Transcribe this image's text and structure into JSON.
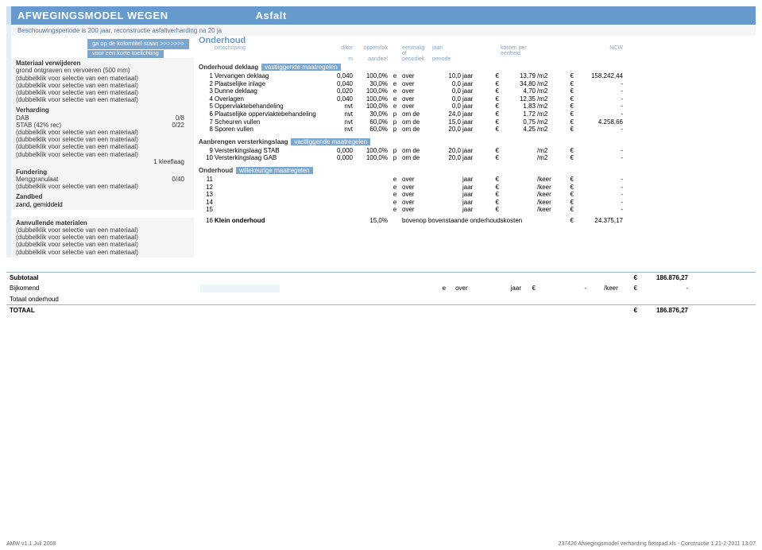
{
  "title": {
    "left": "AFWEGINGSMODEL WEGEN",
    "right": "Asfalt"
  },
  "subtitle": "Beschouwingsperiode is 200 jaar, reconstructie asfaltverharding na 20 ja",
  "hint": {
    "line1": "ga op de kolomtitel staan  >>>>>>>",
    "line2": "voor een korte toelichting"
  },
  "onderhoud": {
    "label": "Onderhoud",
    "cols": [
      "omschrijving",
      "dikte",
      "oppervlak",
      "eenmalig of",
      "jaar/",
      "kosten per eenheid",
      "NCW"
    ],
    "cols2": [
      "",
      "m",
      "aandeel",
      "periodiek",
      "periode",
      "",
      ""
    ]
  },
  "left": {
    "materiaal": {
      "head": "Materiaal verwijderen",
      "items": [
        "grond ontgraven en vervoeren (500 mm)",
        "(dubbelklik voor selectie van een materiaal)",
        "(dubbelklik voor selectie van een materiaal)",
        "(dubbelklik voor selectie van een materiaal)",
        "(dubbelklik voor selectie van een materiaal)"
      ]
    },
    "verharding": {
      "head": "Verharding",
      "items": [
        {
          "label": "DAB",
          "val": "0/8"
        },
        {
          "label": "STAB (42% rec)",
          "val": "0/22"
        },
        {
          "label": "(dubbelklik voor selectie van een materiaal)",
          "val": ""
        },
        {
          "label": "(dubbelklik voor selectie van een materiaal)",
          "val": ""
        },
        {
          "label": "(dubbelklik voor selectie van een materiaal)",
          "val": ""
        },
        {
          "label": "(dubbelklik voor selectie van een materiaal)",
          "val": ""
        },
        {
          "label": "",
          "val": "1 kleeflaag"
        }
      ]
    },
    "fundering": {
      "head": "Fundering",
      "items": [
        {
          "label": "Menggranulaat",
          "val": "0/40"
        },
        {
          "label": "(dubbelklik voor selectie van een materiaal)",
          "val": ""
        }
      ]
    },
    "zandbed": {
      "head": "Zandbed",
      "items": [
        "zand, gemiddeld"
      ]
    },
    "aanvullende": {
      "head": "Aanvullende materialen",
      "items": [
        "(dubbelklik voor selectie van een materiaal)",
        "(dubbelklik voor selectie van een materiaal)",
        "(dubbelklik voor selectie van een materiaal)",
        "(dubbelklik voor selectie van een materiaal)"
      ]
    }
  },
  "right": {
    "sec_deklaag": {
      "title": "Onderhoud deklaag",
      "suffix": "vastliggende maatregelen"
    },
    "rows_deklaag": [
      {
        "n": "1",
        "desc": "Vervangen deklaag",
        "d": "0,040",
        "opp": "100,0%",
        "e": "e",
        "ov": "over",
        "j": "10,0",
        "jl": "jaar",
        "eu": "€",
        "k": "13,79",
        "un": "/m2",
        "eu2": "€",
        "ncw": "158.242,44"
      },
      {
        "n": "2",
        "desc": "Plaatselijke inlage",
        "d": "0,040",
        "opp": "30,0%",
        "e": "e",
        "ov": "over",
        "j": "0,0",
        "jl": "jaar",
        "eu": "€",
        "k": "34,80",
        "un": "/m2",
        "eu2": "€",
        "ncw": "-"
      },
      {
        "n": "3",
        "desc": "Dunne deklaag",
        "d": "0,020",
        "opp": "100,0%",
        "e": "e",
        "ov": "over",
        "j": "0,0",
        "jl": "jaar",
        "eu": "€",
        "k": "4,70",
        "un": "/m2",
        "eu2": "€",
        "ncw": "-"
      },
      {
        "n": "4",
        "desc": "Overlagen",
        "d": "0,040",
        "opp": "100,0%",
        "e": "e",
        "ov": "over",
        "j": "0,0",
        "jl": "jaar",
        "eu": "€",
        "k": "12,35",
        "un": "/m2",
        "eu2": "€",
        "ncw": "-"
      },
      {
        "n": "5",
        "desc": "Oppervlaktebehandeling",
        "d": "nvt",
        "opp": "100,0%",
        "e": "e",
        "ov": "over",
        "j": "0,0",
        "jl": "jaar",
        "eu": "€",
        "k": "1,83",
        "un": "/m2",
        "eu2": "€",
        "ncw": "-"
      },
      {
        "n": "6",
        "desc": "Plaatselijke oppervlaktebehandeling",
        "d": "nvt",
        "opp": "30,0%",
        "e": "p",
        "ov": "om de",
        "j": "24,0",
        "jl": "jaar",
        "eu": "€",
        "k": "1,72",
        "un": "/m2",
        "eu2": "€",
        "ncw": "-"
      },
      {
        "n": "7",
        "desc": "Scheuren vullen",
        "d": "nvt",
        "opp": "60,0%",
        "e": "p",
        "ov": "om de",
        "j": "15,0",
        "jl": "jaar",
        "eu": "€",
        "k": "0,75",
        "un": "/m2",
        "eu2": "€",
        "ncw": "4.258,66"
      },
      {
        "n": "8",
        "desc": "Sporen vullen",
        "d": "nvt",
        "opp": "60,0%",
        "e": "p",
        "ov": "om de",
        "j": "20,0",
        "jl": "jaar",
        "eu": "€",
        "k": "4,25",
        "un": "/m2",
        "eu2": "€",
        "ncw": "-"
      }
    ],
    "sec_verst": {
      "title": "Aanbrengen versterkingslaag",
      "suffix": "vastliggende maatregelen"
    },
    "rows_verst": [
      {
        "n": "9",
        "desc": "Versterkingslaag STAB",
        "d": "0,000",
        "opp": "100,0%",
        "e": "p",
        "ov": "om de",
        "j": "20,0",
        "jl": "jaar",
        "eu": "€",
        "k": "",
        "un": "/m2",
        "eu2": "€",
        "ncw": "-"
      },
      {
        "n": "10",
        "desc": "Versterkingslaag GAB",
        "d": "0,000",
        "opp": "100,0%",
        "e": "p",
        "ov": "om de",
        "j": "20,0",
        "jl": "jaar",
        "eu": "€",
        "k": "",
        "un": "/m2",
        "eu2": "€",
        "ncw": "-"
      }
    ],
    "sec_will": {
      "title": "Onderhoud",
      "suffix": "willekeurige maatregelen"
    },
    "rows_will": [
      {
        "n": "11",
        "desc": "",
        "d": "",
        "opp": "",
        "e": "e",
        "ov": "over",
        "j": "",
        "jl": "jaar",
        "eu": "€",
        "k": "",
        "un": "/keer",
        "eu2": "€",
        "ncw": "-"
      },
      {
        "n": "12",
        "desc": "",
        "d": "",
        "opp": "",
        "e": "e",
        "ov": "over",
        "j": "",
        "jl": "jaar",
        "eu": "€",
        "k": "",
        "un": "/keer",
        "eu2": "€",
        "ncw": "-"
      },
      {
        "n": "13",
        "desc": "",
        "d": "",
        "opp": "",
        "e": "e",
        "ov": "over",
        "j": "",
        "jl": "jaar",
        "eu": "€",
        "k": "",
        "un": "/keer",
        "eu2": "€",
        "ncw": "-"
      },
      {
        "n": "14",
        "desc": "",
        "d": "",
        "opp": "",
        "e": "e",
        "ov": "over",
        "j": "",
        "jl": "jaar",
        "eu": "€",
        "k": "",
        "un": "/keer",
        "eu2": "€",
        "ncw": "-"
      },
      {
        "n": "15",
        "desc": "",
        "d": "",
        "opp": "",
        "e": "e",
        "ov": "over",
        "j": "",
        "jl": "jaar",
        "eu": "€",
        "k": "",
        "un": "/keer",
        "eu2": "€",
        "ncw": "-"
      }
    ],
    "klein": {
      "n": "16",
      "label": "Klein onderhoud",
      "pct": "15,0%",
      "txt": "bovenop bovenstaande onderhoudskosten",
      "eu": "€",
      "val": "24.375,17"
    }
  },
  "sum": {
    "subtotaal": {
      "label": "Subtotaal",
      "eu": "€",
      "val": "186.876,27"
    },
    "bijkomend": {
      "label": "Bijkomend",
      "e": "e",
      "ov": "over",
      "jl": "jaar",
      "eu": "€",
      "k": "-",
      "un": "/keer",
      "eu2": "€",
      "ncw": "-"
    },
    "totaal_o": "Totaal onderhoud",
    "totaal": {
      "label": "TOTAAL",
      "eu": "€",
      "val": "186.876,27"
    }
  },
  "footer": {
    "left": "AMW v1.1 Juli 2008",
    "right": "237426 Afwegingsmodel verharding fietspad.xls - Constructie 1  21-2-2011 13:07"
  }
}
